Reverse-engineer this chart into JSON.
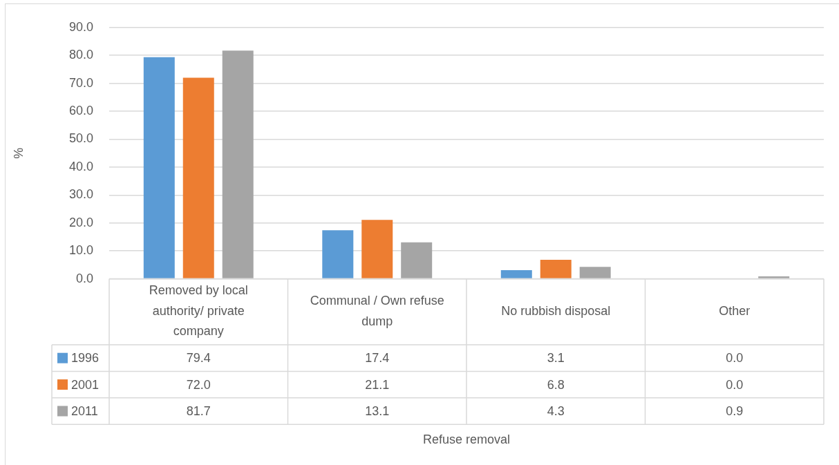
{
  "chart_data": {
    "type": "bar",
    "ylabel": "%",
    "categories": [
      "Removed by local authority/ private company",
      "Communal / Own refuse dump",
      "No rubbish disposal",
      "Other"
    ],
    "series": [
      {
        "name": "1996",
        "color": "#5b9bd5",
        "values": [
          79.4,
          17.4,
          3.1,
          0
        ],
        "value_labels": [
          "79.4",
          "17.4",
          "3.1",
          "0.0"
        ]
      },
      {
        "name": "2001",
        "color": "#ed7d31",
        "values": [
          72.0,
          21.1,
          6.8,
          0
        ],
        "value_labels": [
          "72.0",
          "21.1",
          "6.8",
          "0.0"
        ]
      },
      {
        "name": "2011",
        "color": "#a5a5a5",
        "values": [
          81.7,
          13.1,
          4.3,
          0.9
        ],
        "value_labels": [
          "81.7",
          "13.1",
          "4.3",
          "0.9"
        ]
      }
    ],
    "ylim": [
      0,
      90
    ],
    "yticks": [
      {
        "value": 0,
        "label": "0.0"
      },
      {
        "value": 10,
        "label": "10.0"
      },
      {
        "value": 20,
        "label": "20.0"
      },
      {
        "value": 30,
        "label": "30.0"
      },
      {
        "value": 40,
        "label": "40.0"
      },
      {
        "value": 50,
        "label": "50.0"
      },
      {
        "value": 60,
        "label": "60.0"
      },
      {
        "value": 70,
        "label": "70.0"
      },
      {
        "value": 80,
        "label": "80.0"
      },
      {
        "value": 90,
        "label": "90.0"
      }
    ],
    "grid": "y",
    "legend": "bottom",
    "annotations": [
      "Refuse removal"
    ]
  }
}
